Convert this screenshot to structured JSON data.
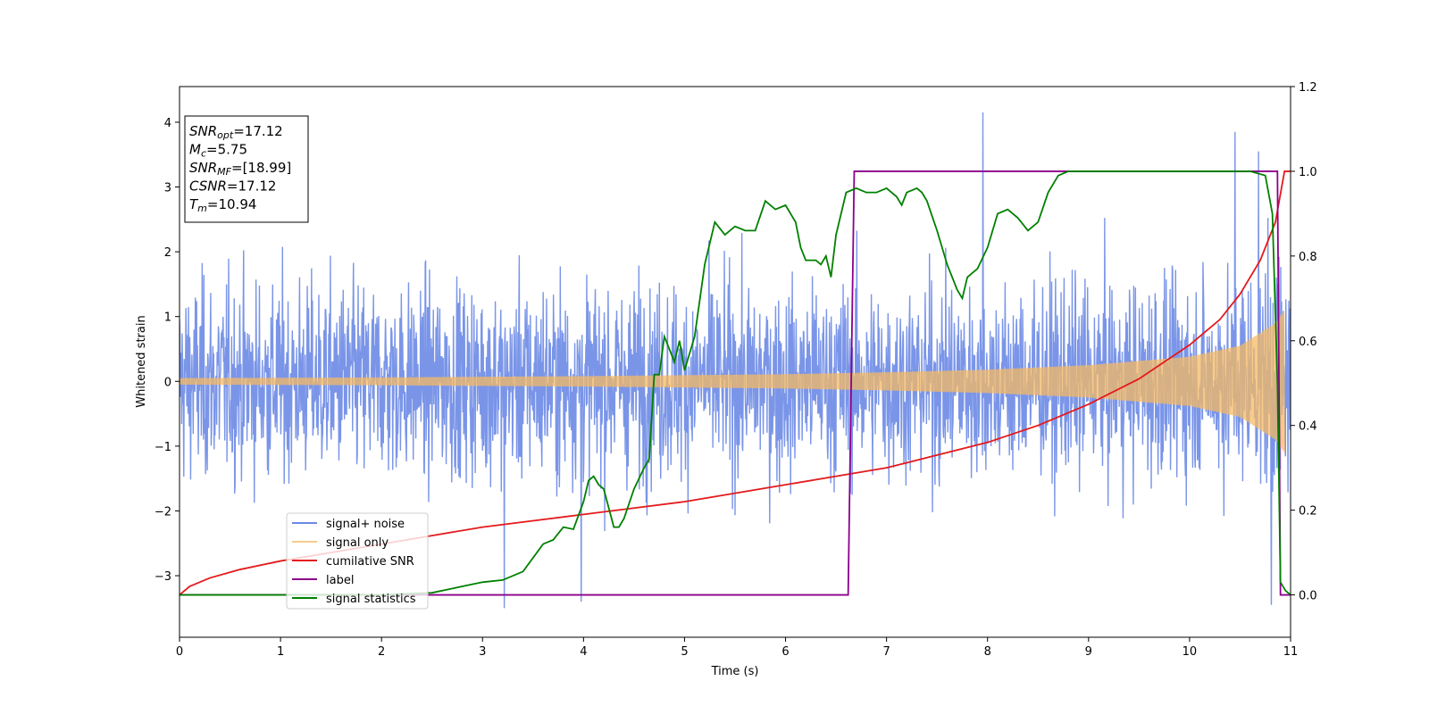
{
  "chart_data": {
    "type": "line",
    "xlabel": "Time (s)",
    "ylabel": "Whitened strain",
    "xlim": [
      0,
      11
    ],
    "ylim_left": [
      -3.95,
      4.55
    ],
    "ylim_right": [
      -0.1,
      1.2
    ],
    "x_ticks": [
      "0",
      "1",
      "2",
      "3",
      "4",
      "5",
      "6",
      "7",
      "8",
      "9",
      "10",
      "11"
    ],
    "y_ticks_left": [
      "−3",
      "−2",
      "−1",
      "0",
      "1",
      "2",
      "3",
      "4"
    ],
    "y_ticks_right": [
      "0.0",
      "0.2",
      "0.4",
      "0.6",
      "0.8",
      "1.0",
      "1.2"
    ],
    "grid": false,
    "legend_position": "lower-left",
    "annotation_box": {
      "lines": [
        {
          "sym": "SNR",
          "sub": "opt",
          "value": "=17.12"
        },
        {
          "sym": "M",
          "sub": "c",
          "value": "=5.75"
        },
        {
          "sym": "SNR",
          "sub": "MF",
          "value": "=[18.99]"
        },
        {
          "sym": "CSNR",
          "sub": "",
          "value": "=17.12"
        },
        {
          "sym": "T",
          "sub": "m",
          "value": "=10.94"
        }
      ]
    },
    "series": [
      {
        "name": "signal+ noise",
        "axis": "left",
        "color": "#6b8ae6",
        "description": "whitened noisy strain, approx. std 1, range about -3.5 to 4.2"
      },
      {
        "name": "signal only",
        "axis": "left",
        "color": "#f5b964",
        "envelope": {
          "x": [
            0,
            2,
            4,
            6,
            7,
            8,
            9,
            10,
            10.5,
            10.85,
            10.94,
            11
          ],
          "amp": [
            0.05,
            0.06,
            0.08,
            0.11,
            0.14,
            0.18,
            0.25,
            0.38,
            0.55,
            0.9,
            1.1,
            0
          ]
        }
      },
      {
        "name": "cumilative SNR",
        "axis": "right",
        "color": "#e31a1c",
        "x": [
          0,
          0.1,
          0.3,
          0.6,
          1,
          1.5,
          2,
          2.5,
          3,
          3.5,
          4,
          4.5,
          5,
          5.5,
          6,
          6.5,
          7,
          7.5,
          8,
          8.5,
          9,
          9.5,
          10,
          10.3,
          10.5,
          10.7,
          10.85,
          10.94,
          11
        ],
        "y": [
          0.0,
          0.02,
          0.04,
          0.06,
          0.08,
          0.1,
          0.12,
          0.14,
          0.16,
          0.175,
          0.19,
          0.205,
          0.22,
          0.24,
          0.26,
          0.28,
          0.3,
          0.33,
          0.36,
          0.4,
          0.45,
          0.51,
          0.59,
          0.65,
          0.71,
          0.79,
          0.88,
          1.0,
          1.0
        ]
      },
      {
        "name": "label",
        "axis": "right",
        "color": "#8b008b",
        "x": [
          0,
          6.62,
          6.68,
          10.87,
          10.9,
          11
        ],
        "y": [
          0,
          0,
          1,
          1,
          0,
          0
        ]
      },
      {
        "name": "signal statistics",
        "axis": "right",
        "color": "#008000",
        "x": [
          0,
          1,
          2,
          2.5,
          2.8,
          3,
          3.2,
          3.4,
          3.6,
          3.7,
          3.8,
          3.9,
          4.0,
          4.05,
          4.1,
          4.15,
          4.2,
          4.3,
          4.35,
          4.4,
          4.5,
          4.6,
          4.65,
          4.7,
          4.75,
          4.8,
          4.9,
          4.95,
          5.0,
          5.05,
          5.1,
          5.2,
          5.3,
          5.4,
          5.5,
          5.6,
          5.7,
          5.8,
          5.85,
          5.9,
          6.0,
          6.1,
          6.15,
          6.2,
          6.3,
          6.35,
          6.4,
          6.45,
          6.5,
          6.6,
          6.7,
          6.8,
          6.9,
          7.0,
          7.1,
          7.15,
          7.2,
          7.3,
          7.35,
          7.4,
          7.5,
          7.6,
          7.7,
          7.75,
          7.8,
          7.85,
          7.9,
          8.0,
          8.1,
          8.2,
          8.3,
          8.4,
          8.5,
          8.6,
          8.7,
          8.8,
          8.9,
          9.0,
          9.3,
          9.6,
          10.0,
          10.3,
          10.6,
          10.75,
          10.82,
          10.87,
          10.9,
          10.95,
          11
        ],
        "y": [
          0,
          0,
          0,
          0.005,
          0.02,
          0.03,
          0.035,
          0.055,
          0.12,
          0.13,
          0.16,
          0.155,
          0.22,
          0.27,
          0.28,
          0.26,
          0.25,
          0.16,
          0.16,
          0.18,
          0.25,
          0.3,
          0.32,
          0.52,
          0.52,
          0.61,
          0.55,
          0.6,
          0.53,
          0.57,
          0.61,
          0.78,
          0.88,
          0.85,
          0.87,
          0.86,
          0.86,
          0.93,
          0.92,
          0.91,
          0.92,
          0.88,
          0.82,
          0.79,
          0.79,
          0.78,
          0.8,
          0.75,
          0.85,
          0.95,
          0.96,
          0.95,
          0.95,
          0.96,
          0.94,
          0.92,
          0.95,
          0.96,
          0.95,
          0.93,
          0.86,
          0.78,
          0.72,
          0.7,
          0.75,
          0.76,
          0.77,
          0.82,
          0.9,
          0.91,
          0.89,
          0.86,
          0.88,
          0.95,
          0.99,
          1.0,
          1.0,
          1.0,
          1.0,
          1.0,
          1.0,
          1.0,
          1.0,
          0.99,
          0.9,
          0.5,
          0.03,
          0.01,
          0.0
        ]
      }
    ]
  }
}
